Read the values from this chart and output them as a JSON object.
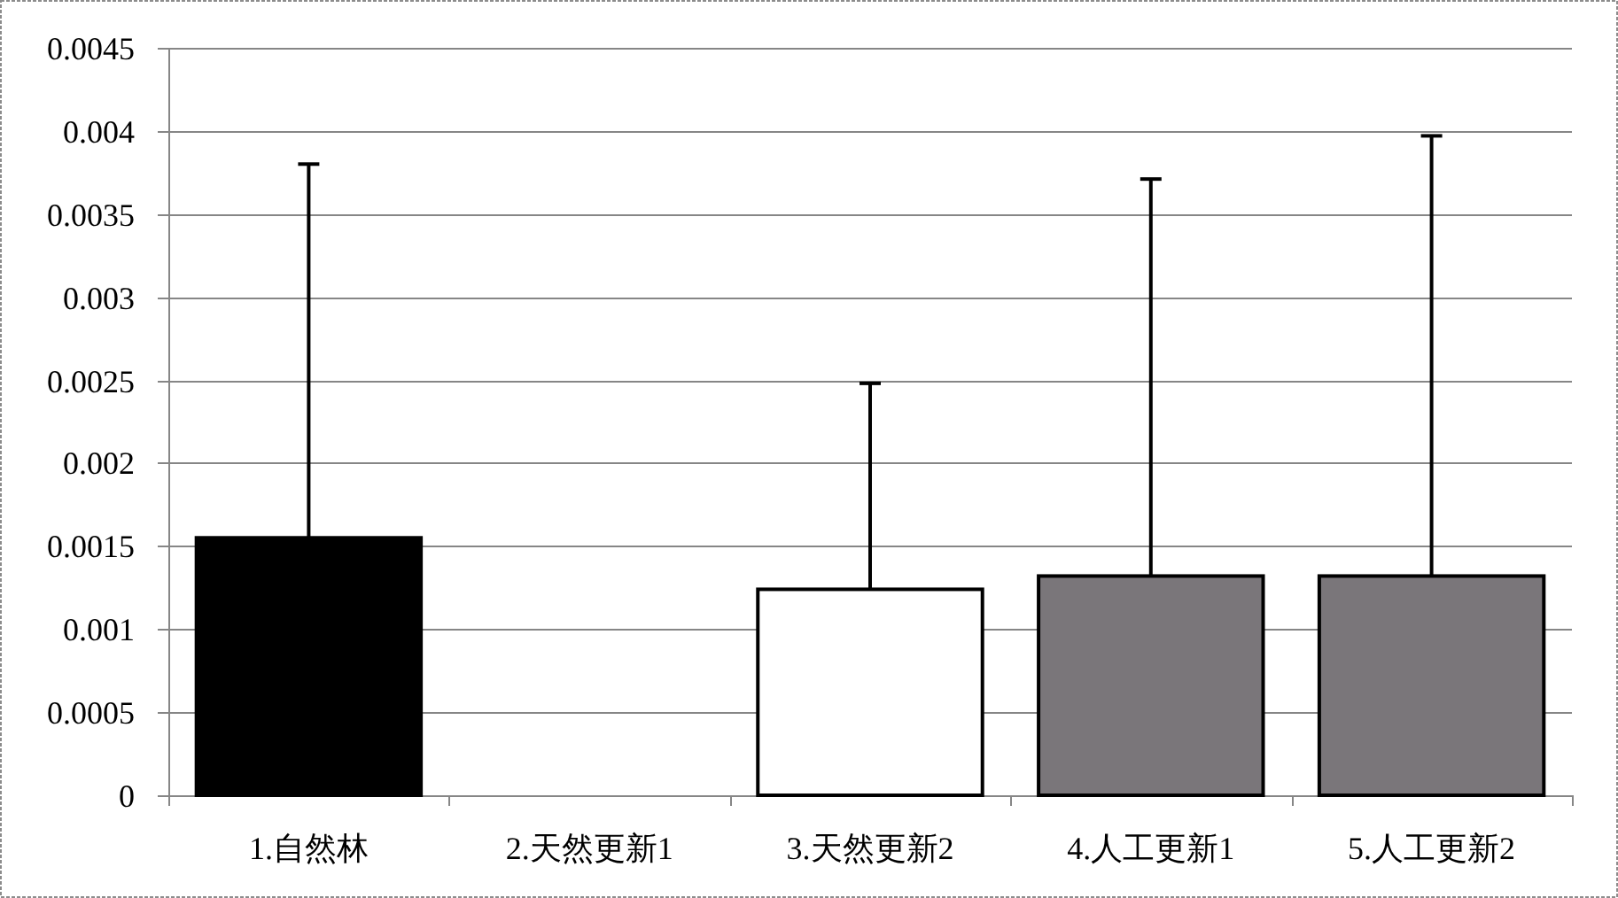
{
  "chart_data": {
    "type": "bar",
    "categories": [
      "1.自然林",
      "2.天然更新1",
      "3.天然更新2",
      "4.人工更新1",
      "5.人工更新2"
    ],
    "values": [
      0.00155,
      null,
      0.00124,
      0.00132,
      0.00132
    ],
    "errors": [
      [
        0.00155,
        0.0038
      ],
      null,
      [
        0.00124,
        0.00248
      ],
      [
        0.00132,
        0.00371
      ],
      [
        0.00132,
        0.00397
      ]
    ],
    "colors": [
      "#000000",
      null,
      "#ffffff",
      "#7a767a",
      "#7a767a"
    ],
    "ylim": [
      0,
      0.0045
    ],
    "yticks": [
      0,
      0.0005,
      0.001,
      0.0015,
      0.002,
      0.0025,
      0.003,
      0.0035,
      0.004,
      0.0045
    ],
    "grid": "y"
  }
}
